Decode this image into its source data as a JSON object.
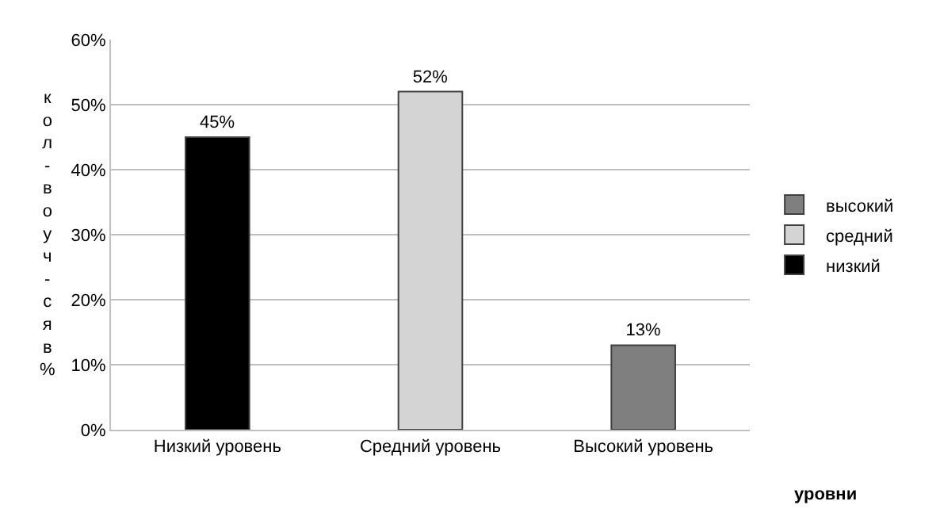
{
  "chart_data": {
    "type": "bar",
    "xlabel": "уровни",
    "ylabel": "кол-во уч-ся в %",
    "categories": [
      "Низкий уровень",
      "Средний уровень",
      "Высокий уровень"
    ],
    "series": [
      {
        "name": "низкий",
        "color": "#000000",
        "values": [
          45,
          null,
          null
        ],
        "value_labels": [
          "45%",
          null,
          null
        ]
      },
      {
        "name": "средний",
        "color": "#d4d4d4",
        "values": [
          null,
          52,
          null
        ],
        "value_labels": [
          null,
          "52%",
          null
        ]
      },
      {
        "name": "высокий",
        "color": "#7f7f7f",
        "values": [
          null,
          null,
          13
        ],
        "value_labels": [
          null,
          null,
          "13%"
        ]
      }
    ],
    "ylim": [
      0,
      60
    ],
    "yticks": [
      {
        "value": 0,
        "label": "0%"
      },
      {
        "value": 10,
        "label": "10%"
      },
      {
        "value": 20,
        "label": "20%"
      },
      {
        "value": 30,
        "label": "30%"
      },
      {
        "value": 40,
        "label": "40%"
      },
      {
        "value": 50,
        "label": "50%"
      },
      {
        "value": 60,
        "label": "60%"
      }
    ],
    "grid": "y",
    "legend": "right"
  }
}
